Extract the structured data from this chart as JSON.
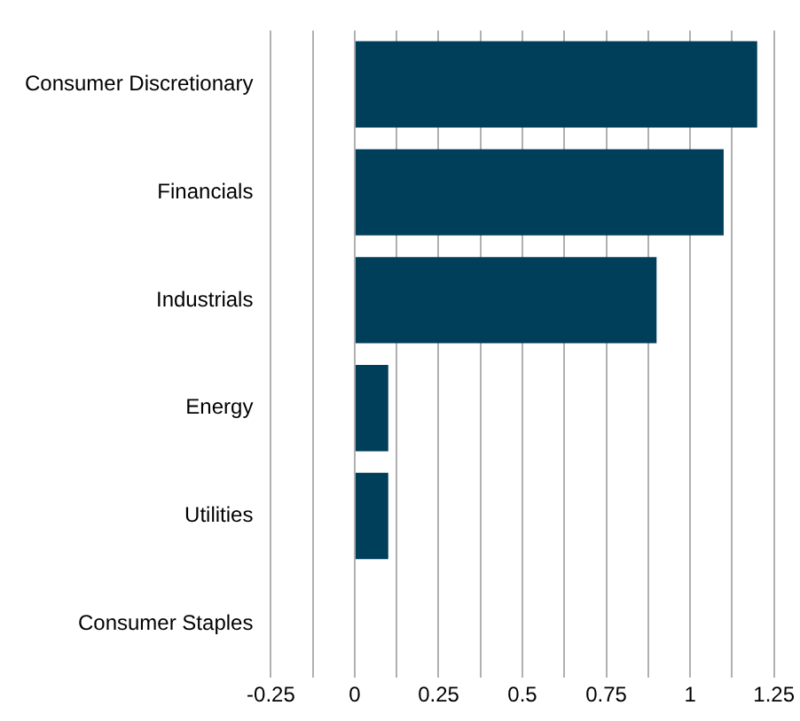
{
  "chart_data": {
    "type": "bar",
    "orientation": "horizontal",
    "categories": [
      "Consumer Discretionary",
      "Financials",
      "Industrials",
      "Energy",
      "Utilities",
      "Consumer Staples"
    ],
    "values": [
      1.2,
      1.1,
      0.9,
      0.1,
      0.1,
      0
    ],
    "color": "#003f5a",
    "xlim": [
      -0.25,
      1.25
    ],
    "xticks": [
      -0.25,
      {
        "value": -0.125,
        "label": null
      },
      0,
      {
        "value": 0.125,
        "label": null
      },
      0.25,
      {
        "value": 0.375,
        "label": null
      },
      0.5,
      {
        "value": 0.625,
        "label": null
      },
      0.75,
      {
        "value": 0.875,
        "label": null
      },
      1,
      {
        "value": 1.125,
        "label": null
      },
      1.25
    ],
    "grid": "x",
    "legend": false
  }
}
